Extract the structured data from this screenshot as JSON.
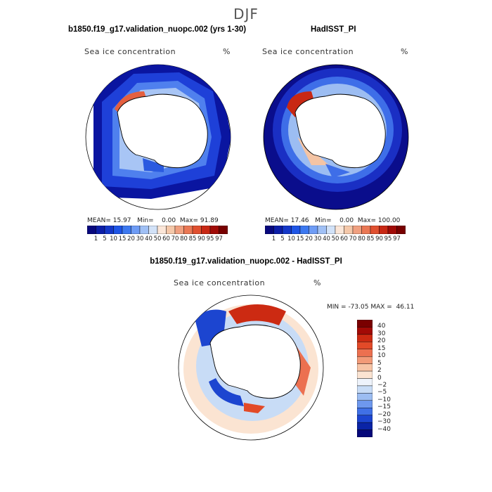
{
  "figure": {
    "season": "DJF",
    "panel1": {
      "title": "b1850.f19_g17.validation_nuopc.002 (yrs 1-30)",
      "subtitle": "Sea ice concentration",
      "units": "%",
      "mean_label": "MEAN=",
      "mean": "15.97",
      "min_label": "Min=",
      "min": "0.00",
      "max_label": "Max=",
      "max": "91.89"
    },
    "panel2": {
      "title": "HadISST_PI",
      "subtitle": "Sea ice concentration",
      "units": "%",
      "mean_label": "MEAN=",
      "mean": "17.46",
      "min_label": "Min=",
      "min": "0.00",
      "max_label": "Max=",
      "max": "100.00"
    },
    "panel3": {
      "title": "b1850.f19_g17.validation_nuopc.002 - HadISST_PI",
      "subtitle": "Sea ice concentration",
      "units": "%",
      "min_label": "MIN =",
      "min": "-73.05",
      "max_label": "MAX =",
      "max": "46.11"
    },
    "colorbar_abs": {
      "labels": [
        "1",
        "5",
        "10",
        "15",
        "20",
        "30",
        "40",
        "50",
        "60",
        "70",
        "80",
        "85",
        "90",
        "95",
        "97"
      ],
      "colors": [
        "#08087d",
        "#0c1ea8",
        "#1437c8",
        "#1e55e6",
        "#3c78f0",
        "#6e9cf5",
        "#a0c0f5",
        "#d2e2f8",
        "#fbe6d8",
        "#f5c8aa",
        "#f0a080",
        "#ea7855",
        "#e05030",
        "#c82814",
        "#a00a06",
        "#780000"
      ]
    },
    "colorbar_diff": {
      "labels": [
        "40",
        "30",
        "20",
        "15",
        "10",
        "5",
        "2",
        "0",
        "−2",
        "−5",
        "−10",
        "−15",
        "−20",
        "−30",
        "−40"
      ],
      "colors": [
        "#7a0000",
        "#a30a06",
        "#cc2a12",
        "#e24a28",
        "#ec7050",
        "#f29a78",
        "#f7c4a6",
        "#fbe4d2",
        "#eef3fb",
        "#c8dcf6",
        "#9cbdf2",
        "#6e98ee",
        "#4070e6",
        "#1c45d0",
        "#0a24a6",
        "#05087a"
      ]
    }
  }
}
